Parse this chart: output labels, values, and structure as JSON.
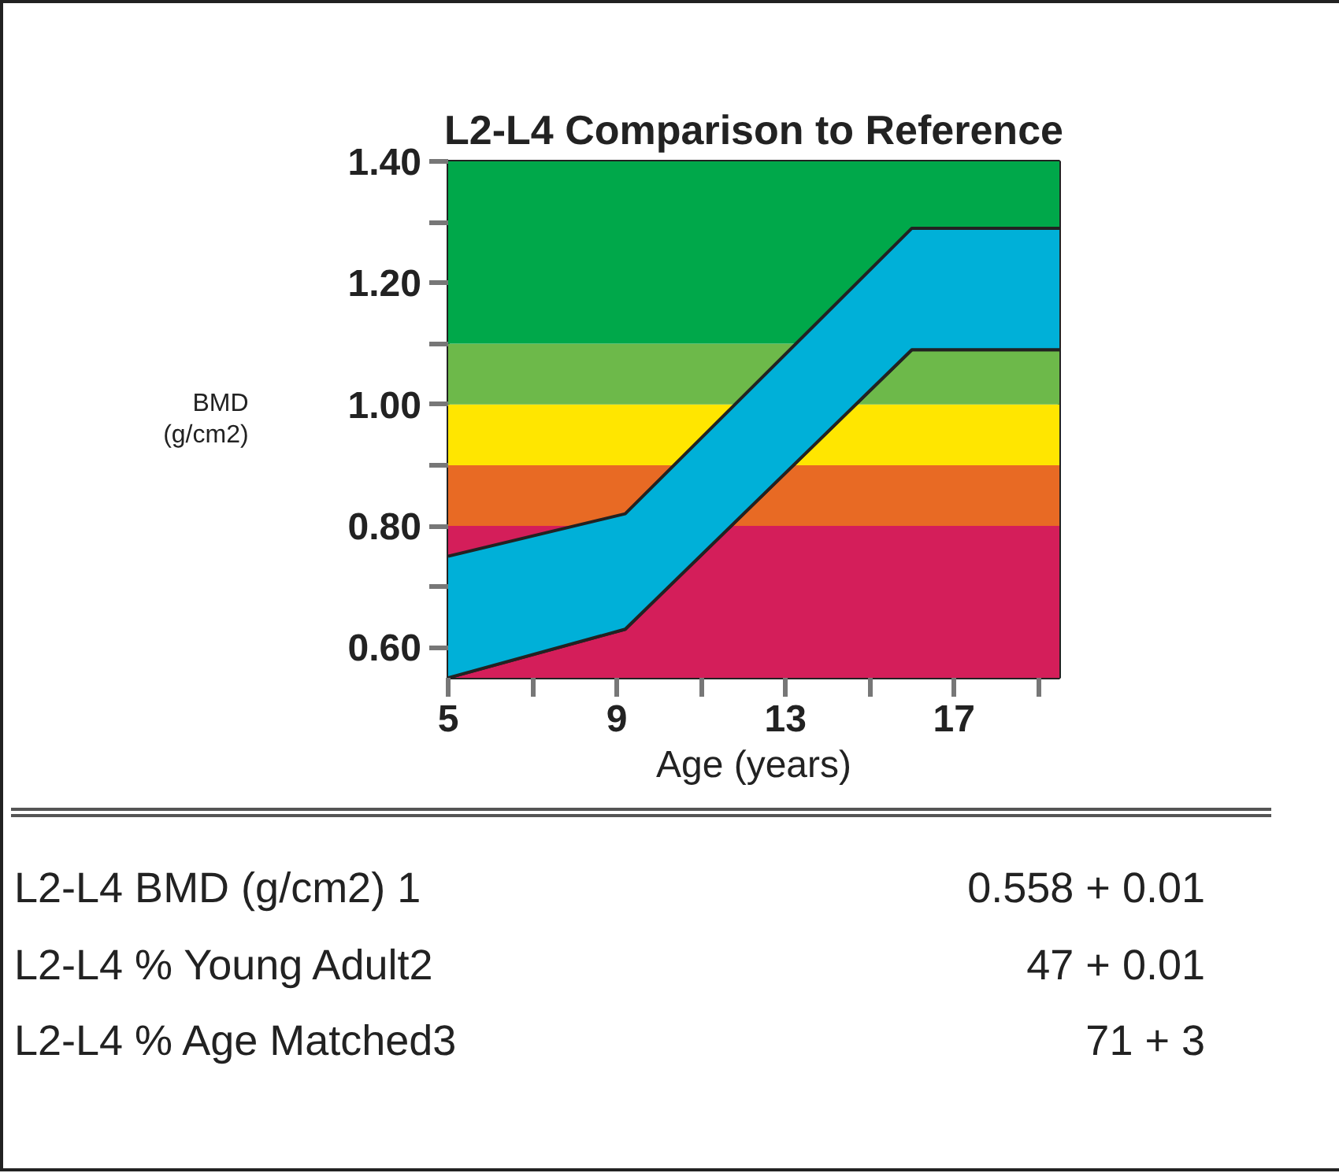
{
  "chart_data": {
    "type": "area",
    "title": "L2-L4 Comparison to Reference",
    "xlabel": "Age (years)",
    "ylabel": "BMD\n(g/cm2)",
    "x": [
      5,
      9.2,
      16,
      19.5
    ],
    "series": [
      {
        "type": "line",
        "color": "#222222",
        "values": [
          0.55,
          0.63,
          1.09,
          1.09
        ]
      },
      {
        "color": "#00b0d8",
        "values": [
          0.75,
          0.82,
          1.29,
          1.29
        ]
      }
    ],
    "bands": [
      {
        "axis": "y",
        "from": 0.55,
        "to": 0.8,
        "color": "#d41e5a"
      },
      {
        "axis": "y",
        "from": 0.8,
        "to": 0.9,
        "color": "#e86a24"
      },
      {
        "axis": "y",
        "from": 0.9,
        "to": 1.0,
        "color": "#ffe600"
      },
      {
        "axis": "y",
        "from": 1.0,
        "to": 1.1,
        "color": "#6db94a"
      },
      {
        "axis": "y",
        "from": 1.1,
        "to": 1.4,
        "color": "#00a84a"
      }
    ],
    "xlim": [
      5,
      19.5
    ],
    "ylim": [
      0.55,
      1.4
    ],
    "xticks": [
      5,
      {
        "value": 7,
        "label": null
      },
      9,
      {
        "value": 11,
        "label": null
      },
      13,
      {
        "value": 15,
        "label": null
      },
      17,
      {
        "value": 19,
        "label": null
      }
    ],
    "yticks": [
      {
        "value": 0.6,
        "label": "0.60"
      },
      {
        "value": 0.7,
        "label": null
      },
      {
        "value": 0.8,
        "label": "0.80"
      },
      {
        "value": 0.9,
        "label": null
      },
      {
        "value": 1.0,
        "label": "1.00"
      },
      {
        "value": 1.1,
        "label": null
      },
      {
        "value": 1.2,
        "label": "1.20"
      },
      {
        "value": 1.3,
        "label": null
      },
      {
        "value": 1.4,
        "label": "1.40"
      }
    ],
    "grid": false,
    "annotations": [
      "L2-L4 BMD (g/cm2) 1",
      "0.558 + 0.01",
      "L2-L4 % Young Adult2",
      "47 + 0.01",
      "L2-L4 % Age Matched3",
      "71 + 3"
    ]
  }
}
